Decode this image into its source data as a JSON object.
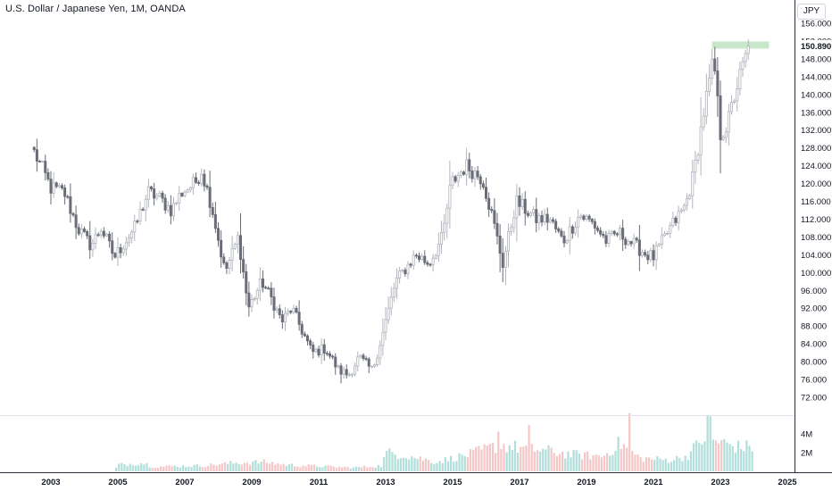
{
  "chart_title": "U.S. Dollar / Japanese Yen, 1M, OANDA",
  "currency_badge": "JPY",
  "current_price_label": "150.890",
  "price_axis_ticks": [
    "156.000",
    "152.000",
    "148.000",
    "144.000",
    "140.000",
    "136.000",
    "132.000",
    "128.000",
    "124.000",
    "120.000",
    "116.000",
    "112.000",
    "108.000",
    "104.000",
    "100.000",
    "96.000",
    "92.000",
    "88.000",
    "84.000",
    "80.000",
    "76.000",
    "72.000"
  ],
  "volume_axis_ticks": [
    "4M",
    "2M"
  ],
  "time_axis_ticks": [
    "2003",
    "2005",
    "2007",
    "2009",
    "2011",
    "2013",
    "2015",
    "2017",
    "2019",
    "2021",
    "2023",
    "2025"
  ],
  "colors": {
    "up_candle": "#b2b5be",
    "down_candle": "#6a6d78",
    "volume_up": "#b2dfdb",
    "volume_down": "#f5c7c7",
    "highlight_band": "#c8e6c9",
    "price_label_bg": "#ffffff"
  },
  "chart_data": {
    "type": "candlestick",
    "title": "U.S. Dollar / Japanese Yen, 1M, OANDA",
    "x_unit": "year",
    "y_unit": "JPY",
    "ylim": [
      72,
      157
    ],
    "xlim": [
      2002.3,
      2025.2
    ],
    "volume_ylim": [
      0,
      5.5
    ],
    "volume_unit": "M",
    "highlight_band_range": [
      150.3,
      151.9
    ],
    "anchors": [
      [
        2002.5,
        127
      ],
      [
        2002.7,
        124
      ],
      [
        2003.0,
        119
      ],
      [
        2003.4,
        118
      ],
      [
        2003.8,
        110
      ],
      [
        2004.2,
        106
      ],
      [
        2004.5,
        110
      ],
      [
        2004.9,
        103.5
      ],
      [
        2005.5,
        110
      ],
      [
        2005.9,
        118
      ],
      [
        2006.2,
        117
      ],
      [
        2006.6,
        114
      ],
      [
        2006.9,
        118
      ],
      [
        2007.3,
        120
      ],
      [
        2007.5,
        123
      ],
      [
        2007.8,
        115
      ],
      [
        2008.2,
        100
      ],
      [
        2008.6,
        108
      ],
      [
        2008.9,
        92
      ],
      [
        2009.3,
        98
      ],
      [
        2009.6,
        94
      ],
      [
        2009.9,
        89
      ],
      [
        2010.2,
        92
      ],
      [
        2010.5,
        87
      ],
      [
        2010.8,
        82
      ],
      [
        2011.2,
        83
      ],
      [
        2011.6,
        78
      ],
      [
        2011.9,
        77
      ],
      [
        2012.2,
        81
      ],
      [
        2012.6,
        78
      ],
      [
        2012.9,
        86
      ],
      [
        2013.3,
        98
      ],
      [
        2013.9,
        104
      ],
      [
        2014.3,
        102
      ],
      [
        2014.7,
        108
      ],
      [
        2014.95,
        120
      ],
      [
        2015.4,
        124
      ],
      [
        2015.9,
        121
      ],
      [
        2016.2,
        112
      ],
      [
        2016.5,
        102
      ],
      [
        2016.9,
        116
      ],
      [
        2017.5,
        112
      ],
      [
        2017.9,
        112
      ],
      [
        2018.3,
        107
      ],
      [
        2018.8,
        113
      ],
      [
        2019.2,
        111
      ],
      [
        2019.6,
        107
      ],
      [
        2019.95,
        109
      ],
      [
        2020.3,
        107
      ],
      [
        2020.8,
        104
      ],
      [
        2021.0,
        103.5
      ],
      [
        2021.5,
        110
      ],
      [
        2021.95,
        115
      ],
      [
        2022.2,
        122
      ],
      [
        2022.5,
        136
      ],
      [
        2022.8,
        148
      ],
      [
        2023.0,
        131
      ],
      [
        2023.2,
        133
      ],
      [
        2023.5,
        142
      ],
      [
        2023.7,
        147
      ],
      [
        2023.85,
        150.9
      ]
    ],
    "volume_profile": [
      [
        2002.3,
        0
      ],
      [
        2004.9,
        0
      ],
      [
        2005.0,
        0.7
      ],
      [
        2005.8,
        0.9
      ],
      [
        2006.0,
        0.5
      ],
      [
        2007.5,
        0.6
      ],
      [
        2008.5,
        0.9
      ],
      [
        2009.4,
        1.0
      ],
      [
        2010.0,
        0.7
      ],
      [
        2012.0,
        0.4
      ],
      [
        2012.9,
        0.6
      ],
      [
        2013.0,
        2.0
      ],
      [
        2013.5,
        1.8
      ],
      [
        2014.5,
        1.0
      ],
      [
        2015.5,
        1.8
      ],
      [
        2016.4,
        2.8
      ],
      [
        2017.0,
        2.5
      ],
      [
        2017.8,
        2.2
      ],
      [
        2018.5,
        1.8
      ],
      [
        2019.5,
        1.6
      ],
      [
        2020.0,
        3.0
      ],
      [
        2020.6,
        1.4
      ],
      [
        2021.5,
        1.2
      ],
      [
        2022.0,
        1.6
      ],
      [
        2022.5,
        3.6
      ],
      [
        2023.0,
        3.1
      ],
      [
        2023.5,
        2.6
      ],
      [
        2023.95,
        2.6
      ],
      [
        2024.0,
        0.8
      ]
    ],
    "volume_spikes": [
      [
        2016.4,
        4.2
      ],
      [
        2017.3,
        3.9
      ],
      [
        2020.25,
        5.6
      ],
      [
        2022.6,
        4.9
      ],
      [
        2022.7,
        5.3
      ]
    ],
    "grid": false,
    "legend": "none"
  }
}
